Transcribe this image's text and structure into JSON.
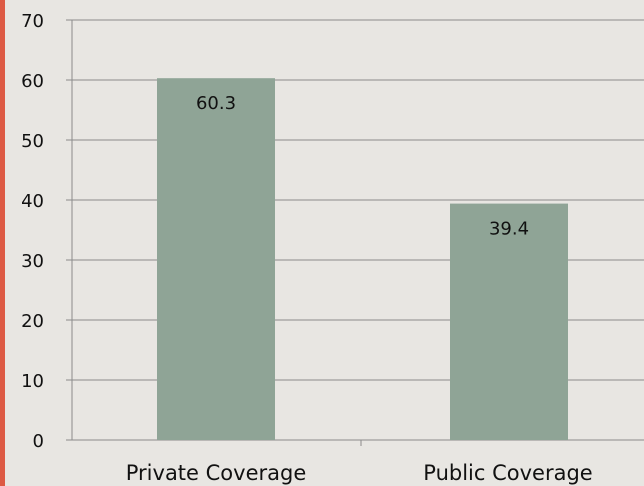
{
  "colors": {
    "accent_bar": "#dd5a44",
    "background": "#e8e6e2",
    "bar_fill": "#8fa496",
    "gridline": "#8b8b8b",
    "text": "#111111"
  },
  "chart_data": {
    "type": "bar",
    "title": "",
    "xlabel": "",
    "ylabel": "",
    "categories": [
      "Private Coverage",
      "Public Coverage"
    ],
    "values": [
      60.3,
      39.4
    ],
    "data_labels": [
      "60.3",
      "39.4"
    ],
    "ylim": [
      0,
      70
    ],
    "yticks": [
      0,
      10,
      20,
      30,
      40,
      50,
      60,
      70
    ],
    "ytick_labels": [
      "0",
      "10",
      "20",
      "30",
      "40",
      "50",
      "60",
      "70"
    ],
    "grid": true,
    "legend": "none"
  }
}
